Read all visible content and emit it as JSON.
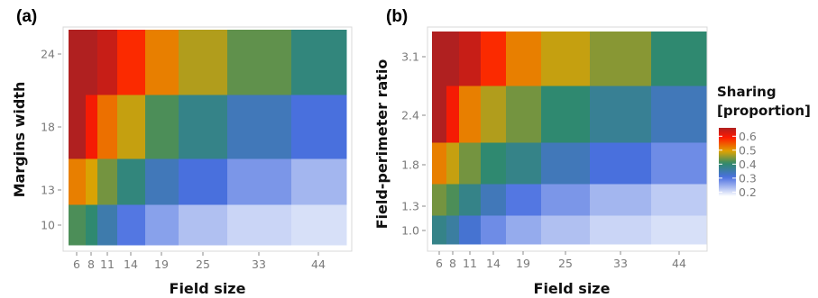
{
  "chart_data": [
    {
      "type": "heatmap",
      "panel_label": "(a)",
      "xlabel": "Field size",
      "ylabel": "Margins width",
      "x_ticks": [
        "6",
        "8",
        "11",
        "14",
        "19",
        "25",
        "33",
        "44"
      ],
      "y_ticks": [
        "10",
        "13",
        "18",
        "24"
      ],
      "legend_title": [
        "Sharing",
        "[proportion]"
      ],
      "columns": [
        "6",
        "8",
        "11",
        "14",
        "19",
        "25",
        "33",
        "44"
      ],
      "rows": [
        "10",
        "13",
        "18",
        "24"
      ],
      "values": [
        [
          0.42,
          0.4,
          0.35,
          0.3,
          0.26,
          0.23,
          0.21,
          0.2
        ],
        [
          0.52,
          0.49,
          0.44,
          0.39,
          0.34,
          0.31,
          0.27,
          0.24
        ],
        [
          0.66,
          0.6,
          0.53,
          0.48,
          0.42,
          0.38,
          0.34,
          0.31
        ],
        [
          0.71,
          0.68,
          0.64,
          0.58,
          0.52,
          0.47,
          0.43,
          0.39
        ]
      ]
    },
    {
      "type": "heatmap",
      "panel_label": "(b)",
      "xlabel": "Field size",
      "ylabel": "Field-perimeter ratio",
      "x_ticks": [
        "6",
        "8",
        "11",
        "14",
        "19",
        "25",
        "33",
        "44"
      ],
      "y_ticks": [
        "1.0",
        "1.3",
        "1.8",
        "2.4",
        "3.1"
      ],
      "legend_title": [
        "Sharing",
        "[proportion]"
      ],
      "columns": [
        "6",
        "8",
        "11",
        "14",
        "19",
        "25",
        "33",
        "44"
      ],
      "rows": [
        "1.0",
        "1.3",
        "1.8",
        "2.4",
        "3.1"
      ],
      "values": [
        [
          0.38,
          0.36,
          0.32,
          0.28,
          0.25,
          0.23,
          0.21,
          0.2
        ],
        [
          0.44,
          0.42,
          0.38,
          0.34,
          0.3,
          0.27,
          0.24,
          0.22
        ],
        [
          0.52,
          0.48,
          0.44,
          0.4,
          0.38,
          0.34,
          0.31,
          0.28
        ],
        [
          0.66,
          0.6,
          0.52,
          0.47,
          0.44,
          0.4,
          0.37,
          0.34
        ],
        [
          0.7,
          0.67,
          0.64,
          0.58,
          0.52,
          0.48,
          0.45,
          0.4
        ]
      ]
    }
  ],
  "legend": {
    "title": [
      "Sharing",
      "[proportion]"
    ],
    "ticks": [
      "0.6",
      "0.5",
      "0.4",
      "0.3",
      "0.2"
    ],
    "tick_values": [
      0.6,
      0.5,
      0.4,
      0.3,
      0.2
    ],
    "range": [
      0.17,
      0.66
    ],
    "colors": [
      "#ffffff",
      "#4a6fe0",
      "#2e8a6a",
      "#e0a400",
      "#ff1a00",
      "#b02020"
    ]
  }
}
